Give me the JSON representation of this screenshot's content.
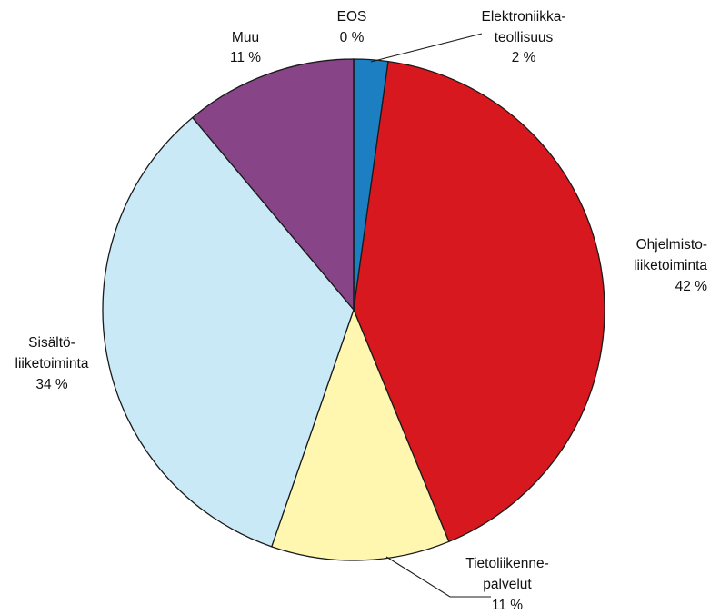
{
  "chart_data": {
    "type": "pie",
    "title": "",
    "slices": [
      {
        "label_lines": [
          "Elektroniikka-",
          "teollisuus"
        ],
        "value_text": "2 %",
        "value": 2.2,
        "color": "#1b7fc1"
      },
      {
        "label_lines": [
          "Ohjelmisto-",
          "liiketoiminta"
        ],
        "value_text": "42 %",
        "value": 41.6,
        "color": "#d7191f"
      },
      {
        "label_lines": [
          "Tietoliikenne-",
          "palvelut"
        ],
        "value_text": "11 %",
        "value": 11.5,
        "color": "#fff7b0"
      },
      {
        "label_lines": [
          "Sisältö-",
          "liiketoiminta"
        ],
        "value_text": "34 %",
        "value": 33.6,
        "color": "#c9e9f7"
      },
      {
        "label_lines": [
          "Muu"
        ],
        "value_text": "11 %",
        "value": 11.1,
        "color": "#874487"
      },
      {
        "label_lines": [
          "EOS"
        ],
        "value_text": "0 %",
        "value": 0.0,
        "color": "#b0b0b0"
      }
    ]
  }
}
